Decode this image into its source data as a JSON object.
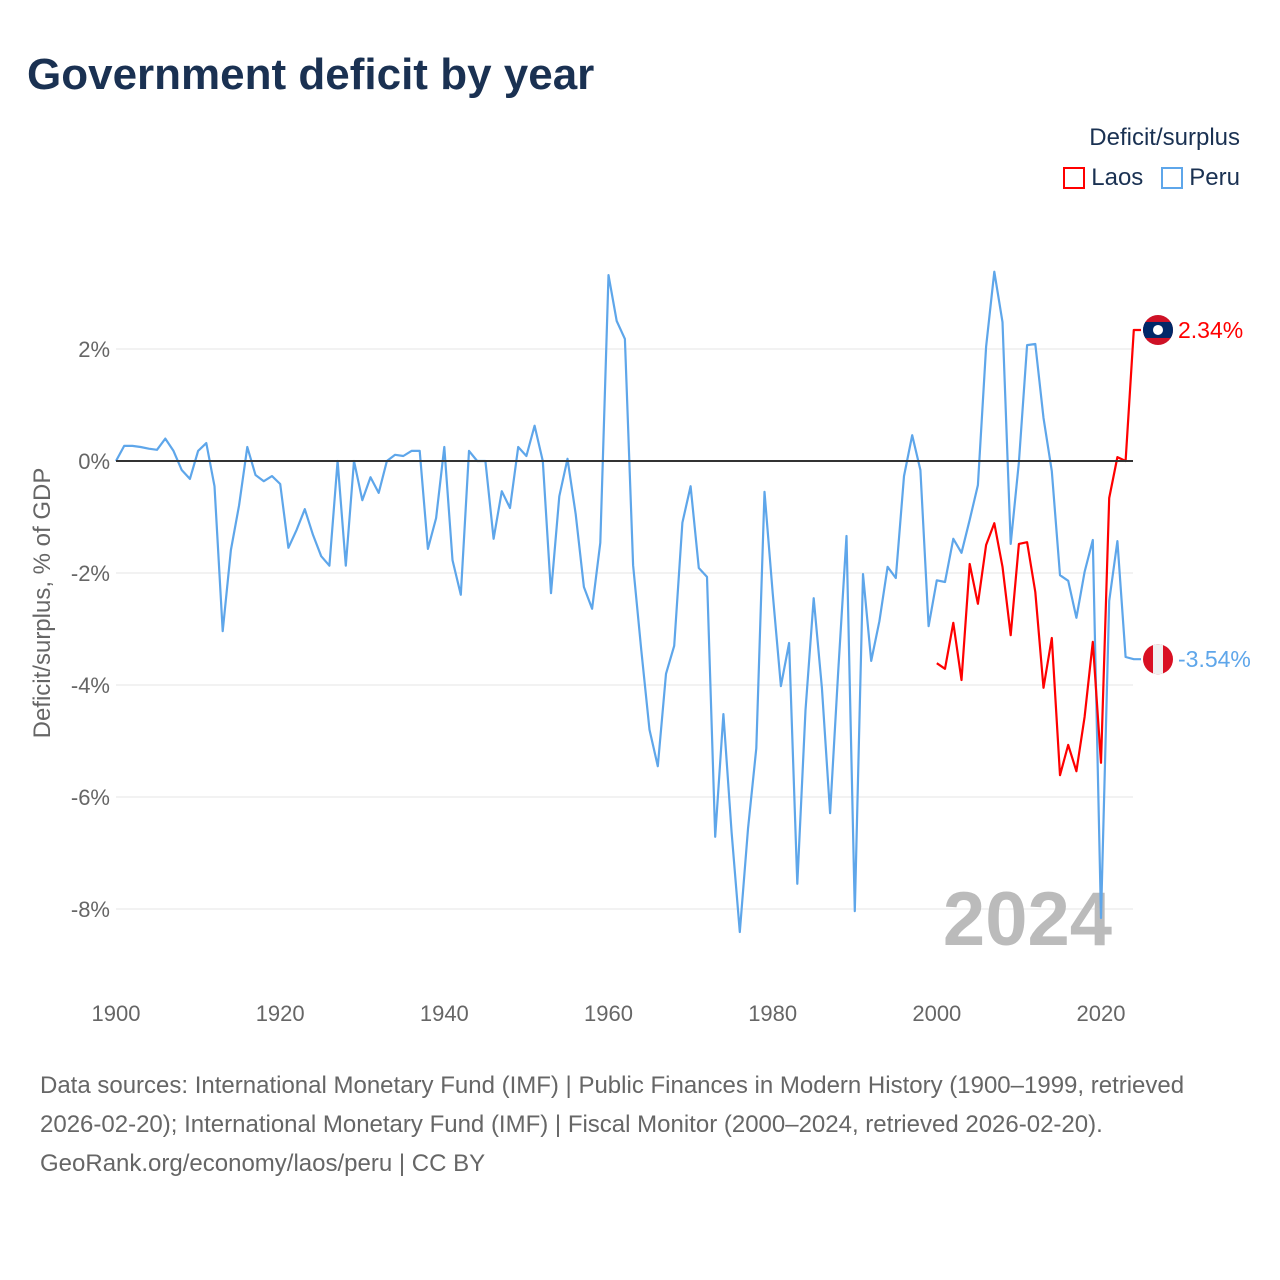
{
  "title": "Government deficit by year",
  "legend": {
    "title": "Deficit/surplus",
    "items": [
      {
        "label": "Laos",
        "color": "#ff0000"
      },
      {
        "label": "Peru",
        "color": "#5ea6ea"
      }
    ]
  },
  "chart_data": {
    "type": "line",
    "title": "Government deficit by year",
    "xlabel": "",
    "ylabel": "Deficit/surplus, % of GDP",
    "xlim": [
      1900,
      2024
    ],
    "ylim": [
      -9.3,
      3.8
    ],
    "xticks": [
      1900,
      1920,
      1940,
      1960,
      1980,
      2000,
      2020
    ],
    "xtick_labels": [
      "1900",
      "1920",
      "1940",
      "1960",
      "1980",
      "2000",
      "2020"
    ],
    "yticks": [
      2,
      0,
      -2,
      -4,
      -6,
      -8
    ],
    "ytick_labels": [
      "2%",
      "0%",
      "-2%",
      "-4%",
      "-6%",
      "-8%"
    ],
    "grid": true,
    "legend_position": "top-right",
    "annotation_year": "2024",
    "series": [
      {
        "name": "Peru",
        "color": "#5ea6ea",
        "end_label": "-3.54%",
        "start_year": 1900,
        "values": [
          0,
          0.27,
          0.27,
          0.25,
          0.22,
          0.2,
          0.4,
          0.18,
          -0.16,
          -0.32,
          0.18,
          0.32,
          -0.45,
          -3.04,
          -1.59,
          -0.79,
          0.25,
          -0.25,
          -0.36,
          -0.27,
          -0.41,
          -1.55,
          -1.23,
          -0.86,
          -1.32,
          -1.7,
          -1.87,
          0,
          -1.87,
          0,
          -0.7,
          -0.29,
          -0.57,
          0,
          0.11,
          0.09,
          0.18,
          0.18,
          -1.57,
          -1.02,
          0.25,
          -1.77,
          -2.39,
          0.18,
          0,
          0,
          -1.39,
          -0.54,
          -0.84,
          0.25,
          0.09,
          0.63,
          0,
          -2.36,
          -0.63,
          0.04,
          -0.95,
          -2.25,
          -2.64,
          -1.46,
          3.32,
          2.5,
          2.18,
          -1.86,
          -3.38,
          -4.8,
          -5.45,
          -3.8,
          -3.3,
          -1.1,
          -0.45,
          -1.91,
          -2.07,
          -6.71,
          -4.52,
          -6.63,
          -8.41,
          -6.57,
          -5.13,
          -0.55,
          -2.36,
          -4.02,
          -3.25,
          -7.55,
          -4.45,
          -2.45,
          -4.05,
          -6.29,
          -3.73,
          -1.34,
          -8.04,
          -2.02,
          -3.57,
          -2.86,
          -1.89,
          -2.09,
          -0.27,
          0.46,
          -0.16,
          -2.95,
          -2.13,
          -2.16,
          -1.39,
          -1.64,
          -1.05,
          -0.43,
          2.04,
          3.38,
          2.48,
          -1.48,
          -0.02,
          2.07,
          2.09,
          0.77,
          -0.18,
          -2.04,
          -2.14,
          -2.8,
          -1.98,
          -1.41,
          -8.16,
          -2.5,
          -1.43,
          -3.5,
          -3.54
        ]
      },
      {
        "name": "Laos",
        "color": "#ff0000",
        "end_label": "2.34%",
        "start_year": 2000,
        "values": [
          -3.61,
          -3.71,
          -2.89,
          -3.91,
          -1.84,
          -2.55,
          -1.5,
          -1.11,
          -1.89,
          -3.11,
          -1.48,
          -1.45,
          -2.34,
          -4.05,
          -3.16,
          -5.61,
          -5.07,
          -5.54,
          -4.57,
          -3.23,
          -5.39,
          -0.66,
          0.07,
          0,
          2.34
        ]
      }
    ]
  },
  "footer": {
    "sources": "Data sources: International Monetary Fund (IMF) | Public Finances in Modern History (1900–1999, retrieved 2026-02-20); International Monetary Fund (IMF) | Fiscal Monitor (2000–2024, retrieved 2026-02-20).",
    "credit": "GeoRank.org/economy/laos/peru | CC BY"
  }
}
